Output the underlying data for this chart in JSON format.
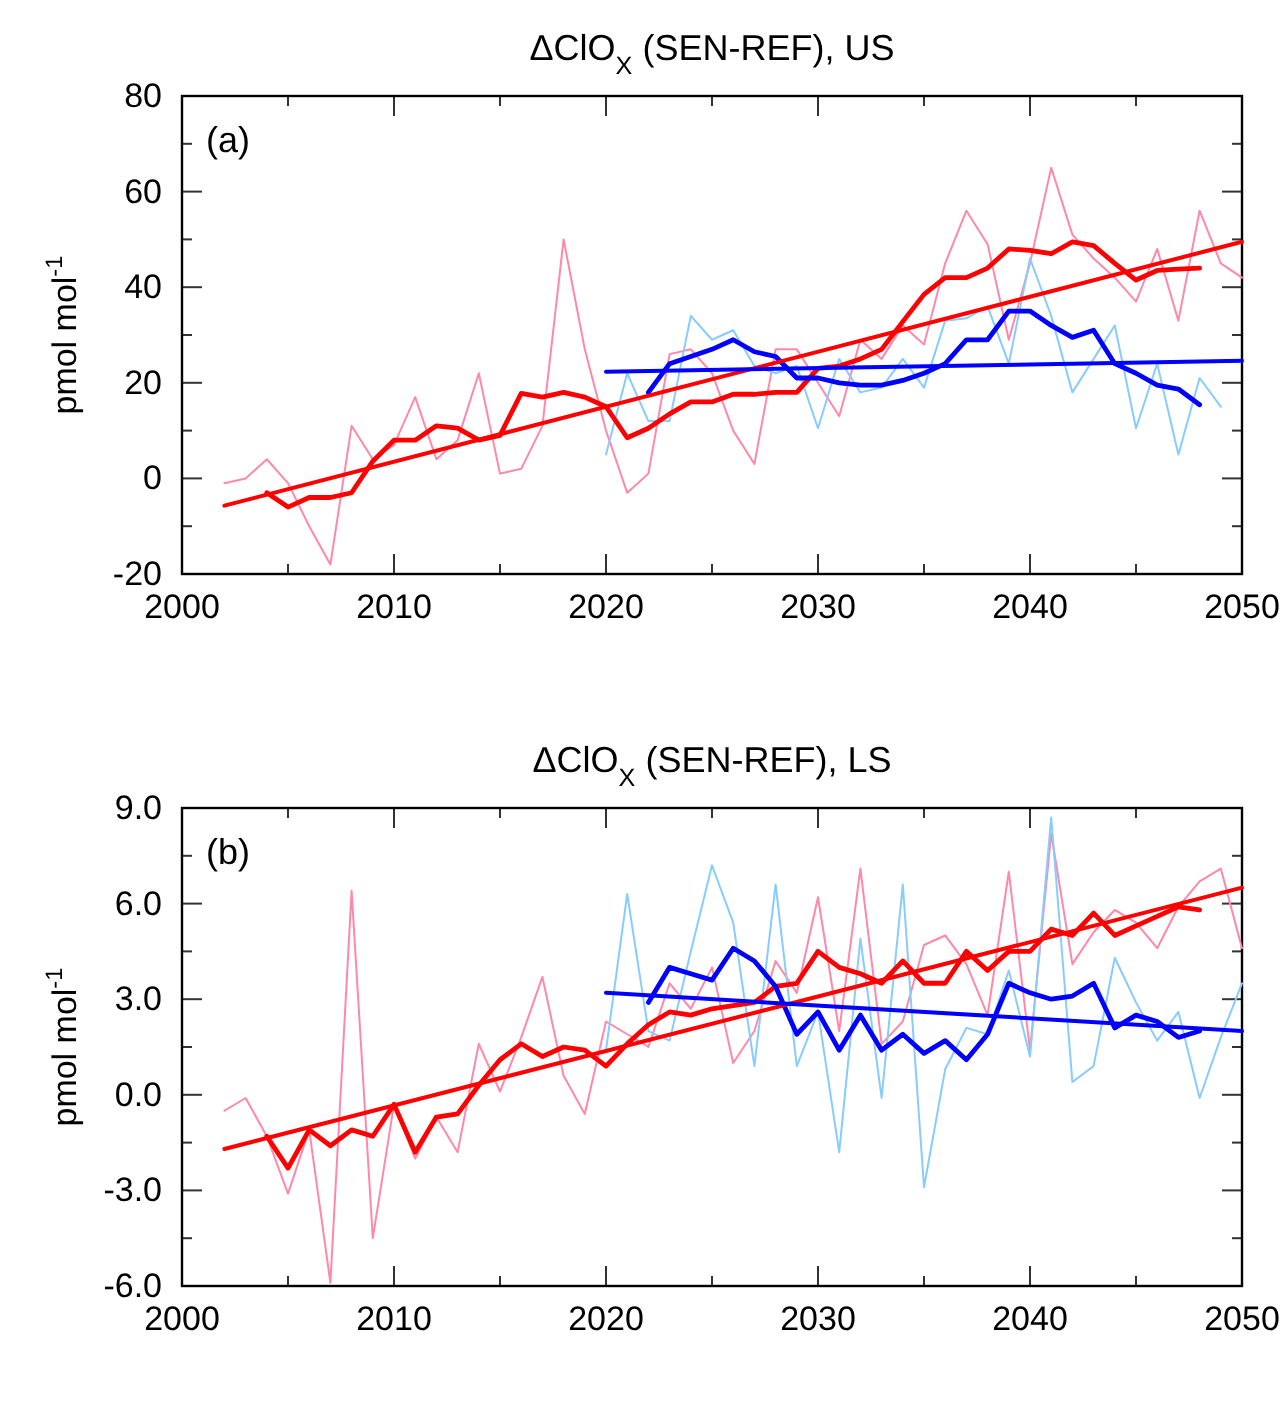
{
  "chart_data": [
    {
      "type": "line",
      "title": "ΔClO$_{X}$ (SEN-REF), US",
      "ylabel": "pmol mol$^{-1}$",
      "annotations": [
        "(a)"
      ],
      "xlim": [
        2000,
        2050
      ],
      "ylim": [
        -20,
        80
      ],
      "xticks": [
        2000,
        {
          "value": 2005,
          "label": null
        },
        2010,
        {
          "value": 2015,
          "label": null
        },
        2020,
        {
          "value": 2025,
          "label": null
        },
        2030,
        {
          "value": 2035,
          "label": null
        },
        2040,
        {
          "value": 2045,
          "label": null
        },
        2050
      ],
      "yticks": [
        -20,
        {
          "value": -10,
          "label": null
        },
        0,
        {
          "value": 10,
          "label": null
        },
        20,
        {
          "value": 30,
          "label": null
        },
        40,
        {
          "value": 50,
          "label": null
        },
        60,
        {
          "value": 70,
          "label": null
        },
        80
      ],
      "grid": false,
      "series": [
        {
          "color": "#ff88aa",
          "x": [
            2002,
            2003,
            2004,
            2005,
            2006,
            2007,
            2008,
            2009,
            2010,
            2011,
            2012,
            2013,
            2014,
            2015,
            2016,
            2017,
            2018,
            2019,
            2020,
            2021,
            2022,
            2023,
            2024,
            2025,
            2026,
            2027,
            2028,
            2029,
            2030,
            2031,
            2032,
            2033,
            2034,
            2035,
            2036,
            2037,
            2038,
            2039,
            2040,
            2041,
            2042,
            2043,
            2044,
            2045,
            2046,
            2047,
            2048,
            2049,
            2050
          ],
          "values": [
            -1,
            0,
            4,
            -1,
            -10,
            -18,
            11,
            4,
            7,
            17,
            4,
            8,
            22,
            1,
            2,
            11,
            50,
            27,
            10,
            -3,
            1,
            26,
            27,
            22,
            10,
            3,
            27,
            27,
            20,
            13,
            29,
            25,
            32,
            28,
            45,
            56,
            49,
            29,
            45,
            65,
            51,
            46,
            42,
            37,
            48,
            33,
            56,
            45,
            42
          ]
        },
        {
          "color": "#88ccff",
          "x": [
            2020,
            2021,
            2022,
            2023,
            2024,
            2025,
            2026,
            2027,
            2028,
            2029,
            2030,
            2031,
            2032,
            2033,
            2034,
            2035,
            2036,
            2037,
            2038,
            2039,
            2040,
            2041,
            2042,
            2043,
            2044,
            2045,
            2046,
            2047,
            2048,
            2049
          ],
          "values": [
            5,
            22,
            12,
            12,
            34,
            29,
            31,
            23.5,
            22,
            23.5,
            10.5,
            25,
            18,
            19,
            25,
            19,
            33,
            33.5,
            36,
            24,
            46,
            34,
            18,
            25,
            32,
            10.5,
            24,
            5,
            21,
            15
          ]
        },
        {
          "color": "#ff0000",
          "x": [
            2004,
            2005,
            2006,
            2007,
            2008,
            2009,
            2010,
            2011,
            2012,
            2013,
            2014,
            2015,
            2016,
            2017,
            2018,
            2019,
            2020,
            2021,
            2022,
            2023,
            2024,
            2025,
            2026,
            2027,
            2028,
            2029,
            2030,
            2031,
            2032,
            2033,
            2034,
            2035,
            2036,
            2037,
            2038,
            2039,
            2040,
            2041,
            2042,
            2043,
            2044,
            2045,
            2046,
            2047,
            2048
          ],
          "values": [
            -3,
            -6,
            -4,
            -4,
            -3,
            3.6,
            8,
            8,
            11,
            10.5,
            8,
            9,
            17.8,
            17,
            18,
            17,
            15,
            8.5,
            10.5,
            13.5,
            16,
            16,
            17.6,
            17.6,
            18,
            18,
            23,
            23.5,
            25,
            27,
            32.8,
            38.5,
            42,
            42,
            44,
            48,
            47.7,
            47,
            49.5,
            48.7,
            45,
            41.5,
            43.5,
            43.8,
            44
          ]
        },
        {
          "color": "#0000ff",
          "x": [
            2022,
            2023,
            2024,
            2025,
            2026,
            2027,
            2028,
            2029,
            2030,
            2031,
            2032,
            2033,
            2034,
            2035,
            2036,
            2037,
            2038,
            2039,
            2040,
            2041,
            2042,
            2043,
            2044,
            2045,
            2046,
            2047,
            2048
          ],
          "values": [
            18,
            24,
            25.5,
            27,
            29,
            26.5,
            25.5,
            21,
            21,
            20,
            19.5,
            19.5,
            20.5,
            22,
            24,
            29,
            29,
            35,
            35,
            32,
            29.5,
            31,
            24,
            22,
            19.5,
            18.7,
            15.4
          ]
        },
        {
          "color": "#ff0000",
          "x": [
            2002,
            2050
          ],
          "values": [
            -5.7,
            49.5
          ]
        },
        {
          "color": "#0000ff",
          "x": [
            2020,
            2050
          ],
          "values": [
            22.3,
            24.6
          ]
        }
      ]
    },
    {
      "type": "line",
      "title": "ΔClO$_{X}$ (SEN-REF), LS",
      "ylabel": "pmol mol$^{-1}$",
      "annotations": [
        "(b)"
      ],
      "xlim": [
        2000,
        2050
      ],
      "ylim": [
        -6,
        9
      ],
      "xticks": [
        2000,
        {
          "value": 2005,
          "label": null
        },
        2010,
        {
          "value": 2015,
          "label": null
        },
        2020,
        {
          "value": 2025,
          "label": null
        },
        2030,
        {
          "value": 2035,
          "label": null
        },
        2040,
        {
          "value": 2045,
          "label": null
        },
        2050
      ],
      "yticks": [
        {
          "value": -6,
          "label": "-6.0"
        },
        {
          "value": -4.5,
          "label": null
        },
        {
          "value": -3,
          "label": "-3.0"
        },
        {
          "value": -1.5,
          "label": null
        },
        {
          "value": 0,
          "label": "0.0"
        },
        {
          "value": 1.5,
          "label": null
        },
        {
          "value": 3,
          "label": "3.0"
        },
        {
          "value": 4.5,
          "label": null
        },
        {
          "value": 6,
          "label": "6.0"
        },
        {
          "value": 7.5,
          "label": null
        },
        {
          "value": 9,
          "label": "9.0"
        }
      ],
      "grid": false,
      "series": [
        {
          "color": "#ff88aa",
          "x": [
            2002,
            2003,
            2004,
            2005,
            2006,
            2007,
            2008,
            2009,
            2010,
            2011,
            2012,
            2013,
            2014,
            2015,
            2016,
            2017,
            2018,
            2019,
            2020,
            2021,
            2022,
            2023,
            2024,
            2025,
            2026,
            2027,
            2028,
            2029,
            2030,
            2031,
            2032,
            2033,
            2034,
            2035,
            2036,
            2037,
            2038,
            2039,
            2040,
            2041,
            2042,
            2043,
            2044,
            2045,
            2046,
            2047,
            2048,
            2049,
            2050
          ],
          "values": [
            -0.5,
            -0.1,
            -1.3,
            -3.1,
            -1.1,
            -5.9,
            6.4,
            -4.5,
            -0.3,
            -2,
            -0.7,
            -1.8,
            1.6,
            0.1,
            1.8,
            3.7,
            0.6,
            -0.6,
            2.3,
            1.9,
            1.5,
            3.5,
            2.7,
            4,
            1,
            2,
            4.2,
            3.2,
            6.2,
            2,
            7.1,
            1.6,
            2.3,
            4.7,
            5,
            4.1,
            2.5,
            7,
            1.4,
            8.2,
            4.1,
            5.1,
            5.8,
            5.4,
            4.6,
            5.9,
            6.7,
            7.1,
            4.6
          ]
        },
        {
          "color": "#88ccff",
          "x": [
            2020,
            2021,
            2022,
            2023,
            2024,
            2025,
            2026,
            2027,
            2028,
            2029,
            2030,
            2031,
            2032,
            2033,
            2034,
            2035,
            2036,
            2037,
            2038,
            2039,
            2040,
            2041,
            2042,
            2043,
            2044,
            2045,
            2046,
            2047,
            2048,
            2049,
            2050
          ],
          "values": [
            1.4,
            6.3,
            2,
            1.7,
            4.5,
            7.2,
            5.4,
            0.9,
            6.6,
            0.9,
            2.6,
            -1.8,
            4.9,
            -0.1,
            6.6,
            -2.9,
            0.8,
            2.1,
            1.9,
            3.9,
            1.2,
            8.7,
            0.4,
            0.9,
            4.3,
            2.9,
            1.7,
            2.6,
            -0.1,
            1.8,
            3.5
          ]
        },
        {
          "color": "#ff0000",
          "x": [
            2004,
            2005,
            2006,
            2007,
            2008,
            2009,
            2010,
            2011,
            2012,
            2013,
            2014,
            2015,
            2016,
            2017,
            2018,
            2019,
            2020,
            2021,
            2022,
            2023,
            2024,
            2025,
            2026,
            2027,
            2028,
            2029,
            2030,
            2031,
            2032,
            2033,
            2034,
            2035,
            2036,
            2037,
            2038,
            2039,
            2040,
            2041,
            2042,
            2043,
            2044,
            2045,
            2046,
            2047,
            2048
          ],
          "values": [
            -1.3,
            -2.3,
            -1.1,
            -1.6,
            -1.1,
            -1.3,
            -0.3,
            -1.8,
            -0.7,
            -0.6,
            0.3,
            1.1,
            1.6,
            1.2,
            1.5,
            1.4,
            0.9,
            1.6,
            2.2,
            2.6,
            2.5,
            2.7,
            2.8,
            2.9,
            3.4,
            3.5,
            4.5,
            4,
            3.8,
            3.5,
            4.2,
            3.5,
            3.5,
            4.5,
            3.9,
            4.5,
            4.5,
            5.2,
            5,
            5.7,
            5,
            5.3,
            5.6,
            5.9,
            5.8
          ]
        },
        {
          "color": "#0000ff",
          "x": [
            2022,
            2023,
            2024,
            2025,
            2026,
            2027,
            2028,
            2029,
            2030,
            2031,
            2032,
            2033,
            2034,
            2035,
            2036,
            2037,
            2038,
            2039,
            2040,
            2041,
            2042,
            2043,
            2044,
            2045,
            2046,
            2047,
            2048
          ],
          "values": [
            2.9,
            4,
            3.8,
            3.6,
            4.6,
            4.2,
            3.4,
            1.9,
            2.6,
            1.4,
            2.5,
            1.4,
            1.9,
            1.3,
            1.7,
            1.1,
            1.9,
            3.5,
            3.2,
            3,
            3.1,
            3.5,
            2.1,
            2.5,
            2.3,
            1.8,
            2
          ]
        },
        {
          "color": "#ff0000",
          "x": [
            2002,
            2050
          ],
          "values": [
            -1.7,
            6.5
          ]
        },
        {
          "color": "#0000ff",
          "x": [
            2020,
            2050
          ],
          "values": [
            3.2,
            2
          ]
        }
      ]
    }
  ]
}
